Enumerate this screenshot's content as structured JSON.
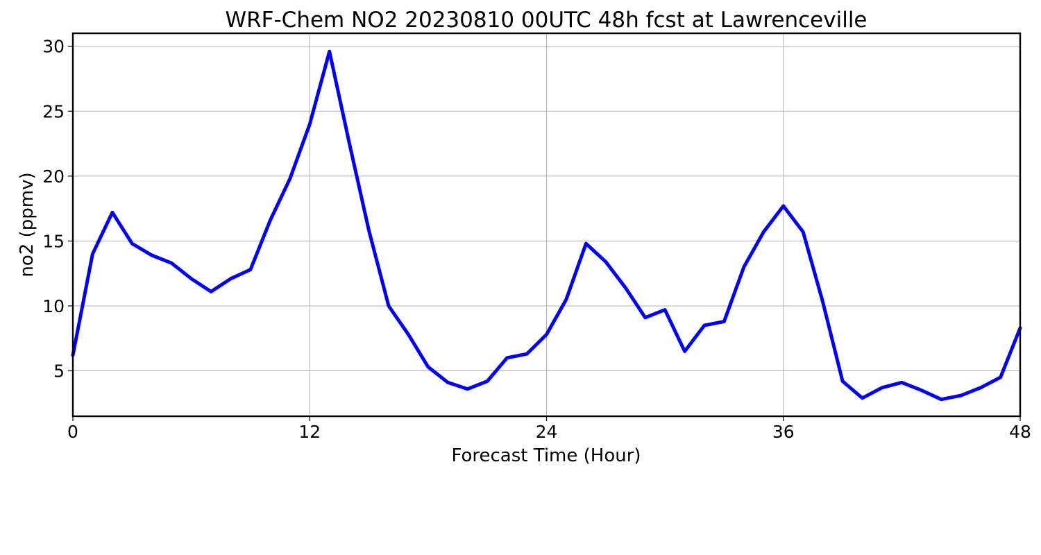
{
  "chart_data": {
    "type": "line",
    "title": "WRF-Chem NO2  20230810 00UTC 48h fcst at Lawrenceville",
    "xlabel": "Forecast Time (Hour)",
    "ylabel": "no2  (ppmv)",
    "xlim": [
      0,
      48
    ],
    "ylim": [
      1.5,
      31
    ],
    "xticks": [
      0,
      12,
      24,
      36,
      48
    ],
    "yticks": [
      5,
      10,
      15,
      20,
      25,
      30
    ],
    "grid": true,
    "series": [
      {
        "color": "#0000ff",
        "x": [
          0,
          1,
          2,
          3,
          4,
          5,
          6,
          7,
          8,
          9,
          10,
          11,
          12,
          13,
          14,
          15,
          16,
          17,
          18,
          19,
          20,
          21,
          22,
          23,
          24,
          25,
          26,
          27,
          28,
          29,
          30,
          31,
          32,
          33,
          34,
          35,
          36,
          37,
          38,
          39,
          40,
          41,
          42,
          43,
          44,
          45,
          46,
          47,
          48
        ],
        "values": [
          6.2,
          14.0,
          17.2,
          14.8,
          13.9,
          13.3,
          12.1,
          11.1,
          12.1,
          12.8,
          16.6,
          19.8,
          24.0,
          29.6,
          22.6,
          15.8,
          10.0,
          7.8,
          5.3,
          4.1,
          3.6,
          4.2,
          6.0,
          6.3,
          7.8,
          10.5,
          14.8,
          13.4,
          11.4,
          9.1,
          9.7,
          6.5,
          8.5,
          8.8,
          13.0,
          15.7,
          17.7,
          15.7,
          10.3,
          4.2,
          2.9,
          3.7,
          4.1,
          3.5,
          2.8,
          3.1,
          3.7,
          4.5,
          8.3
        ]
      }
    ]
  }
}
